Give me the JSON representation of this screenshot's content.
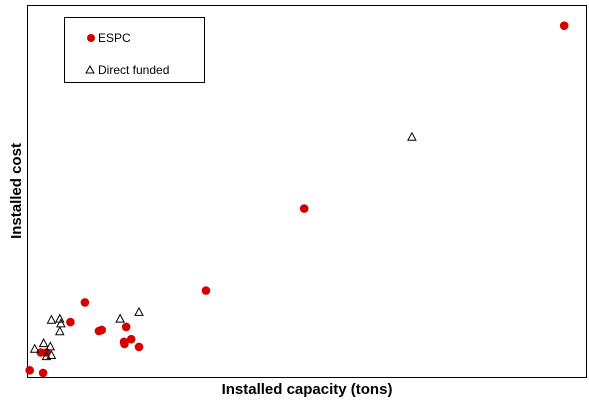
{
  "chart_data": {
    "type": "scatter",
    "title": "",
    "xlabel": "Installed capacity (tons)",
    "ylabel": "Installed cost",
    "xlim": [
      0,
      100
    ],
    "ylim": [
      0,
      100
    ],
    "grid": false,
    "ticks_shown": false,
    "legend_position": "top-left",
    "series": [
      {
        "name": "ESPC",
        "marker": "filled-circle",
        "color": "#d40000",
        "points": [
          {
            "x": 96.1,
            "y": 94.7
          },
          {
            "x": 49.5,
            "y": 45.4
          },
          {
            "x": 31.9,
            "y": 23.3
          },
          {
            "x": 10.2,
            "y": 20.1
          },
          {
            "x": 7.6,
            "y": 14.8
          },
          {
            "x": 13.2,
            "y": 12.7
          },
          {
            "x": 12.7,
            "y": 12.4
          },
          {
            "x": 17.6,
            "y": 13.5
          },
          {
            "x": 19.9,
            "y": 8.1
          },
          {
            "x": 17.3,
            "y": 8.9
          },
          {
            "x": 18.5,
            "y": 10.2
          },
          {
            "x": 17.2,
            "y": 9.5
          },
          {
            "x": 2.3,
            "y": 6.6
          },
          {
            "x": 3.3,
            "y": 6.6
          },
          {
            "x": 0.3,
            "y": 1.8
          },
          {
            "x": 2.7,
            "y": 1.1
          }
        ]
      },
      {
        "name": "Direct funded",
        "marker": "open-triangle",
        "color": "#000000",
        "points": [
          {
            "x": 68.8,
            "y": 64.6
          },
          {
            "x": 19.9,
            "y": 17.4
          },
          {
            "x": 16.5,
            "y": 15.6
          },
          {
            "x": 4.2,
            "y": 15.3
          },
          {
            "x": 5.7,
            "y": 15.6
          },
          {
            "x": 5.9,
            "y": 14.3
          },
          {
            "x": 5.7,
            "y": 12.2
          },
          {
            "x": 2.8,
            "y": 9.0
          },
          {
            "x": 1.2,
            "y": 7.5
          },
          {
            "x": 4.0,
            "y": 8.1
          },
          {
            "x": 4.2,
            "y": 5.8
          },
          {
            "x": 3.3,
            "y": 5.5
          }
        ]
      }
    ]
  }
}
